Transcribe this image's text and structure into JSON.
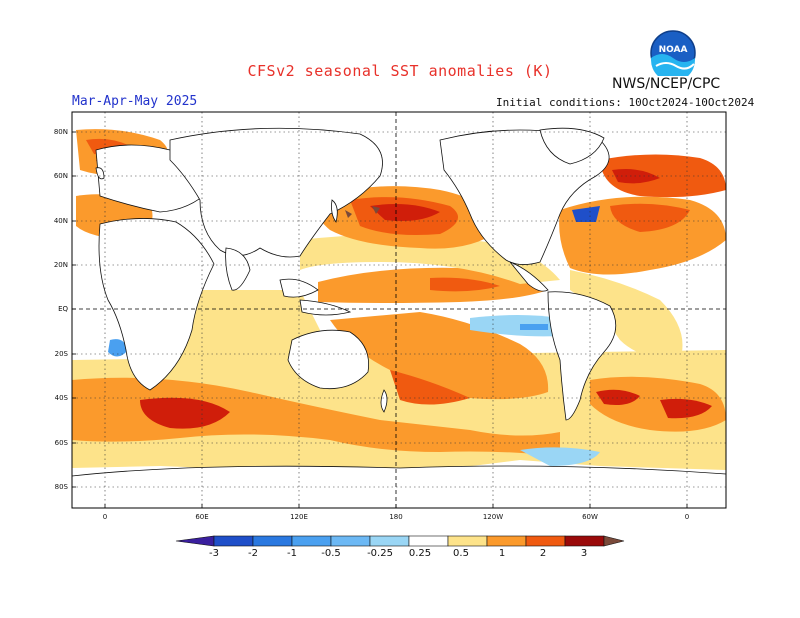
{
  "header": {
    "title": "CFSv2 seasonal SST anomalies (K)",
    "organization": "NWS/NCEP/CPC",
    "period": "Mar-Apr-May 2025",
    "initial_conditions": "Initial conditions: 10Oct2024-10Oct2024",
    "logo_text": "NOAA"
  },
  "map": {
    "latitude_labels": [
      "80N",
      "60N",
      "40N",
      "20N",
      "EQ",
      "20S",
      "40S",
      "60S",
      "80S"
    ],
    "longitude_labels": [
      "0",
      "60E",
      "120E",
      "180",
      "120W",
      "60W",
      "0"
    ],
    "land_color": "#ffffff",
    "ocean_neutral_color": "#ffffff",
    "features": [
      "warm anomalies across North Pacific",
      "warm band along equatorial central Pacific",
      "cool anomalies in eastern equatorial Pacific",
      "warm anomalies in Southern Ocean and North Atlantic"
    ]
  },
  "colorbar": {
    "levels": [
      "-3",
      "-2",
      "-1",
      "-0.5",
      "-0.25",
      "0.25",
      "0.5",
      "1",
      "2",
      "3"
    ],
    "colors": [
      "#3a1f9e",
      "#1f4fc9",
      "#2a78e0",
      "#4aa0f0",
      "#9ad6f5",
      "#ffffff",
      "#fde38a",
      "#fb9a2c",
      "#f05a10",
      "#d01e0a",
      "#9a0a0a",
      "#7a4a3a"
    ]
  }
}
